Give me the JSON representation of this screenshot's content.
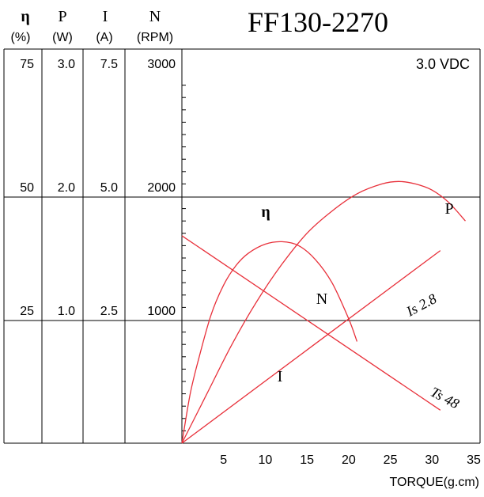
{
  "chart_data": {
    "type": "line",
    "title": "FF130-2270",
    "voltage_label": "3.0 VDC",
    "xlabel": "TORQUE(g.cm)",
    "xlim": [
      0,
      35
    ],
    "x_ticks": [
      "5",
      "10",
      "15",
      "20",
      "25",
      "30",
      "35"
    ],
    "scale_columns": [
      {
        "symbol": "η",
        "unit": "(%)",
        "ticks": [
          "25",
          "50",
          "75"
        ],
        "max": 75
      },
      {
        "symbol": "P",
        "unit": "(W)",
        "ticks": [
          "1.0",
          "2.0",
          "3.0"
        ],
        "max": 3.0
      },
      {
        "symbol": "I",
        "unit": "(A)",
        "ticks": [
          "2.5",
          "5.0",
          "7.5"
        ],
        "max": 7.5
      },
      {
        "symbol": "N",
        "unit": "(RPM)",
        "ticks": [
          "1000",
          "2000",
          "3000"
        ],
        "max": 3000
      }
    ],
    "series": [
      {
        "name": "N",
        "axis": "N",
        "x": [
          0,
          31
        ],
        "y": [
          1680,
          267
        ]
      },
      {
        "name": "I",
        "axis": "I",
        "x": [
          0,
          31
        ],
        "y": [
          0,
          3.9
        ]
      },
      {
        "name": "η",
        "axis": "η",
        "x": [
          0,
          1,
          2,
          3.5,
          5,
          6.5,
          8,
          10,
          12,
          14,
          16,
          18,
          20,
          21
        ],
        "y": [
          0,
          10,
          17,
          26,
          32,
          36,
          38.5,
          40.3,
          40.8,
          40.0,
          37.2,
          32.5,
          25.2,
          20.6
        ]
      },
      {
        "name": "P",
        "axis": "P",
        "x": [
          0,
          3,
          6,
          9,
          12,
          15,
          18,
          21,
          24,
          26,
          28,
          30,
          32,
          34
        ],
        "y": [
          0,
          0.4,
          0.8,
          1.15,
          1.45,
          1.7,
          1.88,
          2.02,
          2.1,
          2.12,
          2.1,
          2.05,
          1.95,
          1.8
        ]
      }
    ],
    "annotations": {
      "eta_label": "η",
      "p_label": "P",
      "n_label": "N",
      "i_label": "I",
      "is_label": "Is 2.8",
      "ts_label": "Ts 48"
    }
  }
}
